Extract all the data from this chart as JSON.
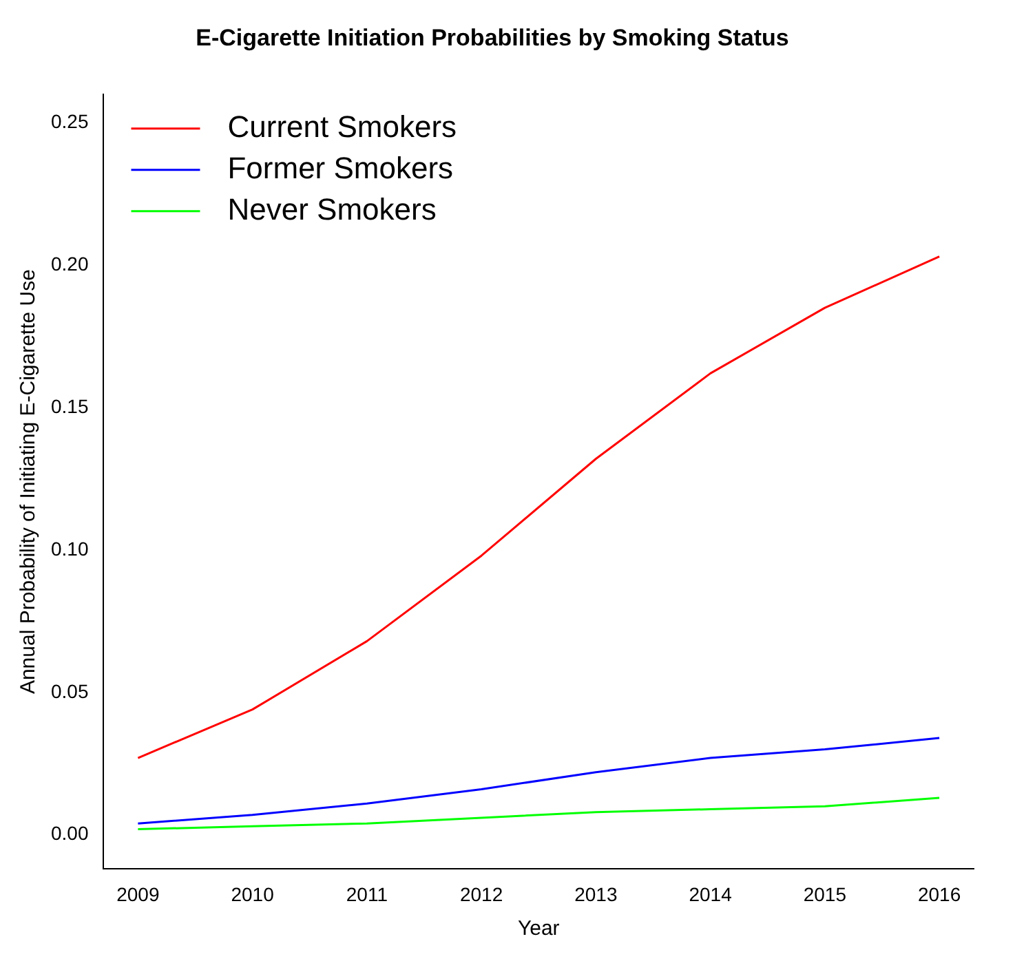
{
  "chart_data": {
    "type": "line",
    "title": "E-Cigarette Initiation Probabilities by Smoking Status",
    "xlabel": "Year",
    "ylabel": "Annual Probability of Initiating E-Cigarette Use",
    "x": [
      2009,
      2010,
      2011,
      2012,
      2013,
      2014,
      2015,
      2016
    ],
    "series": [
      {
        "name": "Current Smokers",
        "color": "#ff0000",
        "values": [
          0.027,
          0.044,
          0.068,
          0.098,
          0.132,
          0.162,
          0.185,
          0.203
        ]
      },
      {
        "name": "Former Smokers",
        "color": "#0000ff",
        "values": [
          0.004,
          0.007,
          0.011,
          0.016,
          0.022,
          0.027,
          0.03,
          0.034
        ]
      },
      {
        "name": "Never Smokers",
        "color": "#00ff00",
        "values": [
          0.002,
          0.003,
          0.004,
          0.006,
          0.008,
          0.009,
          0.01,
          0.013
        ]
      }
    ],
    "xlim": [
      2008.7,
      2016.3
    ],
    "xticks": [
      2009,
      2010,
      2011,
      2012,
      2013,
      2014,
      2015,
      2016
    ],
    "ylim": [
      -0.012,
      0.26
    ],
    "yticks": [
      {
        "value": 0,
        "label": "0.00"
      },
      {
        "value": 0.05,
        "label": "0.05"
      },
      {
        "value": 0.1,
        "label": "0.10"
      },
      {
        "value": 0.15,
        "label": "0.15"
      },
      {
        "value": 0.2,
        "label": "0.20"
      },
      {
        "value": 0.25,
        "label": "0.25"
      }
    ],
    "grid": false,
    "legend": "top left",
    "marker": "none",
    "line_style": "solid"
  }
}
